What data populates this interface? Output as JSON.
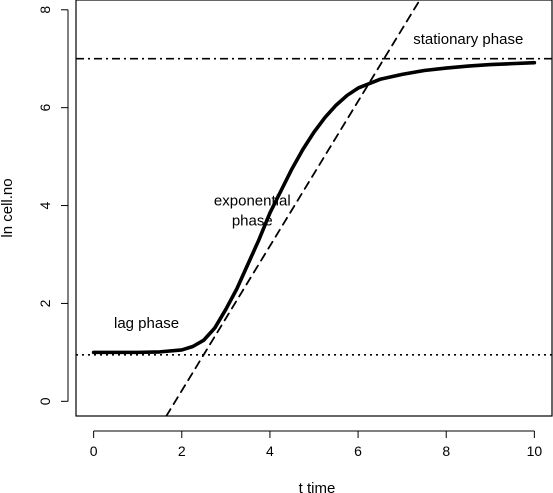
{
  "chart_data": {
    "type": "line",
    "title": "",
    "xlabel": "t time",
    "ylabel": "ln cell.no",
    "xlim": [
      -0.4,
      10.4
    ],
    "ylim": [
      -0.3,
      8.2
    ],
    "xticks": [
      0,
      2,
      4,
      6,
      8,
      10
    ],
    "yticks": [
      0,
      2,
      4,
      6,
      8
    ],
    "grid": false,
    "series": [
      {
        "style": "solid-thick",
        "x": [
          0,
          0.5,
          1,
          1.5,
          2,
          2.25,
          2.5,
          2.75,
          3,
          3.25,
          3.5,
          3.75,
          4,
          4.25,
          4.5,
          4.75,
          5,
          5.25,
          5.5,
          5.75,
          6,
          6.5,
          7,
          7.5,
          8,
          8.5,
          9,
          9.5,
          10
        ],
        "y": [
          1.0,
          1.0,
          1.0,
          1.01,
          1.05,
          1.12,
          1.25,
          1.5,
          1.88,
          2.3,
          2.8,
          3.3,
          3.85,
          4.3,
          4.75,
          5.15,
          5.5,
          5.8,
          6.05,
          6.25,
          6.4,
          6.58,
          6.68,
          6.76,
          6.81,
          6.85,
          6.88,
          6.9,
          6.92
        ]
      },
      {
        "style": "dashed",
        "x": [
          1.65,
          7.4
        ],
        "y": [
          -0.3,
          8.2
        ]
      }
    ],
    "hlines": [
      {
        "y": 7.0,
        "style": "dashdot"
      },
      {
        "y": 0.95,
        "style": "dotted"
      }
    ],
    "annotations": [
      {
        "lines": [
          "stationary phase"
        ],
        "x": 8.5,
        "y": 7.3
      },
      {
        "lines": [
          "exponential",
          "phase"
        ],
        "x": 3.6,
        "y": 4.0
      },
      {
        "lines": [
          "lag phase"
        ],
        "x": 1.2,
        "y": 1.5
      }
    ]
  }
}
